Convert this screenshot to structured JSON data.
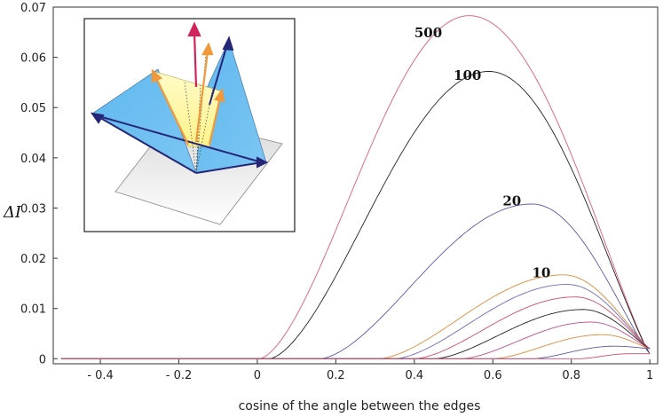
{
  "chart_data": {
    "type": "line",
    "xlabel": "cosine of the angle between the edges",
    "ylabel_main": "ΔI",
    "xlim": [
      -0.52,
      1.02
    ],
    "ylim": [
      -0.001,
      0.07
    ],
    "x_ticks": [
      -0.4,
      -0.2,
      0,
      0.2,
      0.4,
      0.6,
      0.8,
      1
    ],
    "x_tick_labels": [
      "- 0.4",
      "- 0.2",
      "0",
      "0.2",
      "0.4",
      "0.6",
      "0.8",
      "1"
    ],
    "y_ticks": [
      0,
      0.01,
      0.02,
      0.03,
      0.04,
      0.05,
      0.06,
      0.07
    ],
    "y_tick_labels": [
      "0",
      "0.01",
      "0.02",
      "0.03",
      "0.04",
      "0.05",
      "0.06",
      "0.07"
    ],
    "grid": false,
    "series": [
      {
        "name": "500",
        "color": "#e05a7a",
        "start": 0.005,
        "peak_x": 0.54,
        "peak_y": 0.0683,
        "end_y": 0.001,
        "labeled": true,
        "label_x": 0.4,
        "label_y": 0.064
      },
      {
        "name": "100",
        "color": "#222222",
        "start": 0.03,
        "peak_x": 0.59,
        "peak_y": 0.0572,
        "end_y": 0.001,
        "labeled": true,
        "label_x": 0.5,
        "label_y": 0.0555
      },
      {
        "name": "20",
        "color": "#5a5aa8",
        "start": 0.16,
        "peak_x": 0.7,
        "peak_y": 0.0308,
        "end_y": 0.001,
        "labeled": true,
        "label_x": 0.625,
        "label_y": 0.0305
      },
      {
        "name": "10",
        "color": "#e08a3a",
        "start": 0.31,
        "peak_x": 0.78,
        "peak_y": 0.0167,
        "end_y": 0.002,
        "labeled": true,
        "label_x": 0.7,
        "label_y": 0.0162
      },
      {
        "name": "",
        "color": "#6a6ac0",
        "start": 0.35,
        "peak_x": 0.79,
        "peak_y": 0.0148,
        "end_y": 0.002,
        "labeled": false
      },
      {
        "name": "",
        "color": "#d04a6a",
        "start": 0.4,
        "peak_x": 0.81,
        "peak_y": 0.0123,
        "end_y": 0.002,
        "labeled": false
      },
      {
        "name": "",
        "color": "#222222",
        "start": 0.45,
        "peak_x": 0.83,
        "peak_y": 0.0098,
        "end_y": 0.002,
        "labeled": false
      },
      {
        "name": "",
        "color": "#c0508a",
        "start": 0.52,
        "peak_x": 0.85,
        "peak_y": 0.0073,
        "end_y": 0.002,
        "labeled": false
      },
      {
        "name": "",
        "color": "#e08a3a",
        "start": 0.6,
        "peak_x": 0.88,
        "peak_y": 0.0048,
        "end_y": 0.002,
        "labeled": false
      },
      {
        "name": "",
        "color": "#5a5aa8",
        "start": 0.7,
        "peak_x": 0.91,
        "peak_y": 0.0025,
        "end_y": 0.002,
        "labeled": false
      },
      {
        "name": "",
        "color": "#d04a6a",
        "start": 0.82,
        "peak_x": 0.95,
        "peak_y": 0.001,
        "end_y": 0.001,
        "labeled": false
      }
    ]
  },
  "inset": {
    "description_icon": "pyramid-edges-diagram-icon"
  }
}
